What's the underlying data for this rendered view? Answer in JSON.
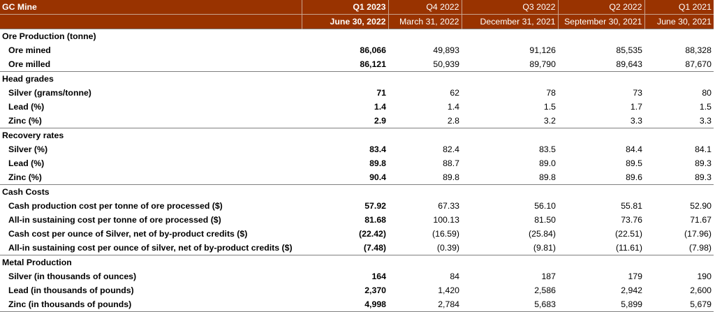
{
  "header": {
    "title": "GC Mine",
    "quarters": [
      "Q1 2023",
      "Q4 2022",
      "Q3 2022",
      "Q2 2022",
      "Q1 2021"
    ],
    "dates": [
      "June 30, 2022",
      "March 31, 2022",
      "December 31, 2021",
      "September 30, 2021",
      "June 30, 2021"
    ]
  },
  "sections": [
    {
      "title": "Ore Production (tonne)",
      "rows": [
        {
          "label": "Ore mined",
          "values": [
            "86,066",
            "49,893",
            "91,126",
            "85,535",
            "88,328"
          ]
        },
        {
          "label": "Ore milled",
          "values": [
            "86,121",
            "50,939",
            "89,790",
            "89,643",
            "87,670"
          ]
        }
      ]
    },
    {
      "title": "Head grades",
      "rows": [
        {
          "label": "Silver (grams/tonne)",
          "values": [
            "71",
            "62",
            "78",
            "73",
            "80"
          ]
        },
        {
          "label": "Lead (%)",
          "values": [
            "1.4",
            "1.4",
            "1.5",
            "1.7",
            "1.5"
          ]
        },
        {
          "label": "Zinc (%)",
          "values": [
            "2.9",
            "2.8",
            "3.2",
            "3.3",
            "3.3"
          ]
        }
      ]
    },
    {
      "title": "Recovery rates",
      "rows": [
        {
          "label": "Silver (%)",
          "values": [
            "83.4",
            "82.4",
            "83.5",
            "84.4",
            "84.1"
          ]
        },
        {
          "label": "Lead (%)",
          "values": [
            "89.8",
            "88.7",
            "89.0",
            "89.5",
            "89.3"
          ]
        },
        {
          "label": "Zinc (%)",
          "values": [
            "90.4",
            "89.8",
            "89.8",
            "89.6",
            "89.3"
          ]
        }
      ]
    },
    {
      "title": "Cash Costs",
      "rows": [
        {
          "label": "Cash production cost per tonne of ore processed ($)",
          "values": [
            "57.92",
            "67.33",
            "56.10",
            "55.81",
            "52.90"
          ]
        },
        {
          "label": "All-in sustaining cost per tonne of ore processed ($)",
          "values": [
            "81.68",
            "100.13",
            "81.50",
            "73.76",
            "71.67"
          ]
        },
        {
          "label": "Cash cost per ounce of Silver, net of by-product credits ($)",
          "values": [
            "(22.42)",
            "(16.59)",
            "(25.84)",
            "(22.51)",
            "(17.96)"
          ]
        },
        {
          "label": "All-in sustaining cost per ounce of silver, net of by-product credits ($)",
          "values": [
            "(7.48)",
            "(0.39)",
            "(9.81)",
            "(11.61)",
            "(7.98)"
          ]
        }
      ]
    },
    {
      "title": "Metal Production",
      "rows": [
        {
          "label": "Silver (in thousands of ounces)",
          "values": [
            "164",
            "84",
            "187",
            "179",
            "190"
          ]
        },
        {
          "label": "Lead (in thousands of pounds)",
          "values": [
            "2,370",
            "1,420",
            "2,586",
            "2,942",
            "2,600"
          ]
        },
        {
          "label": "Zinc (in thousands of pounds)",
          "values": [
            "4,998",
            "2,784",
            "5,683",
            "5,899",
            "5,679"
          ]
        }
      ]
    }
  ]
}
